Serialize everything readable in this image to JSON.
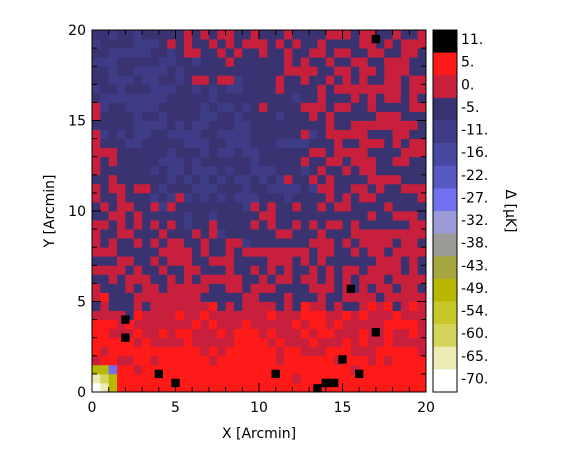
{
  "chart_data": {
    "type": "heatmap",
    "xlabel": "X [Arcmin]",
    "ylabel": "Y [Arcmin]",
    "xlim": [
      0,
      20
    ],
    "ylim": [
      0,
      20
    ],
    "x_ticks": [
      "0",
      "5",
      "10",
      "15",
      "20"
    ],
    "y_ticks": [
      "0",
      "5",
      "10",
      "15",
      "20"
    ],
    "grid": false,
    "grid_cells": [
      40,
      40
    ],
    "colorbar": {
      "label": "Δ [μK]",
      "levels": [
        "11.",
        "5.",
        "0.",
        "-5.",
        "-11.",
        "-16.",
        "-22.",
        "-27.",
        "-32.",
        "-38.",
        "-43.",
        "-49.",
        "-54.",
        "-60.",
        "-65.",
        "-70."
      ],
      "colors": [
        "#000000",
        "#ff1a1a",
        "#c8203c",
        "#3a3372",
        "#3e3c86",
        "#4848a0",
        "#5758c0",
        "#7270f0",
        "#9a9ad8",
        "#9a9a96",
        "#a6a640",
        "#b8b800",
        "#c8c82a",
        "#d4d45a",
        "#ecebb4",
        "#ffffff"
      ]
    },
    "dominant_levels": [
      "5.",
      "0.",
      "-5.",
      "-11."
    ],
    "cold_corner": {
      "x_range": [
        0,
        1.5
      ],
      "y_range": [
        0,
        1.5
      ],
      "levels": [
        "-70.",
        "-65.",
        "-60.",
        "-49.",
        "-27.",
        "-32."
      ]
    },
    "hot_pixels": [
      {
        "x": 17,
        "y": 19.5
      },
      {
        "x": 2,
        "y": 4
      },
      {
        "x": 2,
        "y": 3
      },
      {
        "x": 4,
        "y": 1
      },
      {
        "x": 5,
        "y": 0.5
      },
      {
        "x": 11,
        "y": 1
      },
      {
        "x": 13.5,
        "y": 0.2
      },
      {
        "x": 14,
        "y": 0.5
      },
      {
        "x": 14.5,
        "y": 0.5
      },
      {
        "x": 15,
        "y": 1.8
      },
      {
        "x": 15.5,
        "y": 5.7
      },
      {
        "x": 16,
        "y": 1
      },
      {
        "x": 17,
        "y": 3.3
      }
    ]
  }
}
